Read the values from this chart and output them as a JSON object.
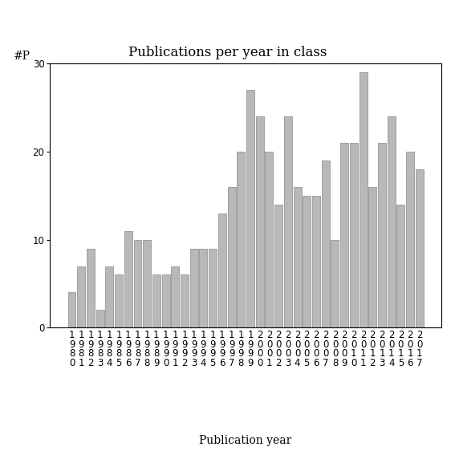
{
  "title": "Publications per year in class",
  "xlabel": "Publication year",
  "ylabel": "#P",
  "years": [
    1980,
    1981,
    1982,
    1983,
    1984,
    1985,
    1986,
    1987,
    1988,
    1989,
    1990,
    1991,
    1992,
    1993,
    1994,
    1995,
    1996,
    1997,
    1998,
    1999,
    2000,
    2001,
    2002,
    2003,
    2004,
    2005,
    2006,
    2007,
    2008,
    2009,
    2010,
    2011,
    2012,
    2013,
    2014,
    2015,
    2016,
    2017
  ],
  "values": [
    4,
    7,
    9,
    2,
    7,
    6,
    11,
    10,
    10,
    6,
    6,
    7,
    6,
    9,
    9,
    9,
    13,
    16,
    20,
    27,
    24,
    20,
    14,
    24,
    16,
    15,
    15,
    19,
    10,
    21,
    21,
    29,
    16,
    21,
    24,
    14,
    20,
    18
  ],
  "bar_color": "#b8b8b8",
  "bar_edge_color": "#888888",
  "ylim": [
    0,
    30
  ],
  "yticks": [
    0,
    10,
    20,
    30
  ],
  "bg_color": "#ffffff",
  "title_fontsize": 12,
  "axis_label_fontsize": 10,
  "tick_fontsize": 8.5
}
